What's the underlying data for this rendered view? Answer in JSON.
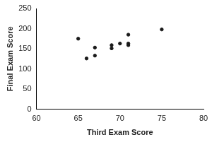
{
  "chart_data": {
    "type": "scatter",
    "x_label": "Third Exam Score",
    "y_label": "Final Exam Score",
    "x": [
      65,
      67,
      71,
      71,
      66,
      75,
      67,
      70,
      71,
      69,
      69
    ],
    "values": [
      175,
      133,
      185,
      163,
      126,
      198,
      153,
      163,
      159,
      151,
      159
    ],
    "color": "#1a1a1a",
    "marker": "circle",
    "xlim": [
      60,
      80
    ],
    "xticks": [
      60,
      65,
      70,
      75,
      80
    ],
    "ylim": [
      0,
      250
    ],
    "yticks": [
      0,
      50,
      100,
      150,
      200,
      250
    ],
    "grid": false
  }
}
